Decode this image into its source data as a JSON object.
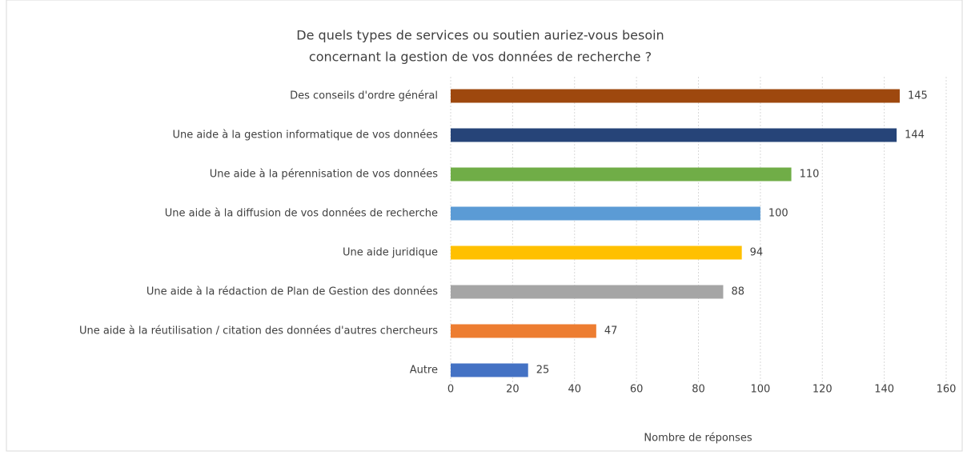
{
  "chart_data": {
    "type": "bar",
    "orientation": "horizontal",
    "title": [
      "De quels types de services ou soutien auriez-vous besoin",
      "concernant la gestion de vos données de recherche ?"
    ],
    "categories": [
      "Des conseils d'ordre général",
      "Une aide à la gestion informatique de vos données",
      "Une aide à la pérennisation de vos données",
      "Une aide à la diffusion de vos données de recherche",
      "Une aide juridique",
      "Une aide à la rédaction de Plan de Gestion des données",
      "Une aide à la réutilisation / citation des données d'autres chercheurs",
      "Autre"
    ],
    "values": [
      145,
      144,
      110,
      100,
      94,
      88,
      47,
      25
    ],
    "colors": [
      "#9e480e",
      "#264478",
      "#70ad47",
      "#5b9bd5",
      "#ffc000",
      "#a5a5a5",
      "#ed7d31",
      "#4472c4"
    ],
    "xlabel": "Nombre de réponses",
    "xlim": [
      0,
      160
    ],
    "xticks": [
      0,
      20,
      40,
      60,
      80,
      100,
      120,
      140,
      160
    ],
    "grid": true
  }
}
